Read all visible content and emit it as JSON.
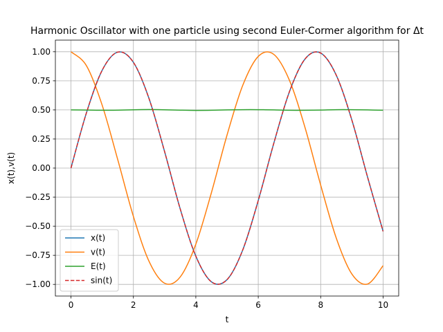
{
  "chart_data": {
    "type": "line",
    "title": "Harmonic Oscillator with one particle using second Euler-Cormer algorithm for Δt",
    "xlabel": "t",
    "ylabel": "x(t),v(t)",
    "xlim": [
      -0.5,
      10.5
    ],
    "ylim": [
      -1.1,
      1.1
    ],
    "xticks": [
      0,
      2,
      4,
      6,
      8,
      10
    ],
    "xtick_labels": [
      "0",
      "2",
      "4",
      "6",
      "8",
      "10"
    ],
    "yticks": [
      -1.0,
      -0.75,
      -0.5,
      -0.25,
      0.0,
      0.25,
      0.5,
      0.75,
      1.0
    ],
    "ytick_labels": [
      "−1.00",
      "−0.75",
      "−0.50",
      "−0.25",
      "0.00",
      "0.25",
      "0.50",
      "0.75",
      "1.00"
    ],
    "grid": true,
    "legend_position": "lower-left",
    "series": [
      {
        "name": "x(t)",
        "color": "#1f77b4",
        "style": "solid",
        "x": [
          0,
          0.5,
          1,
          1.5,
          2,
          2.5,
          3,
          3.5,
          4,
          4.5,
          5,
          5.5,
          6,
          6.5,
          7,
          7.5,
          8,
          8.5,
          9,
          9.5,
          10
        ],
        "y": [
          0,
          0.479,
          0.841,
          0.997,
          0.909,
          0.598,
          0.141,
          -0.351,
          -0.757,
          -0.978,
          -0.959,
          -0.706,
          -0.279,
          0.215,
          0.657,
          0.938,
          0.989,
          0.798,
          0.412,
          -0.075,
          -0.544
        ]
      },
      {
        "name": "v(t)",
        "color": "#ff7f0e",
        "style": "solid",
        "x": [
          0,
          0.5,
          1,
          1.5,
          2,
          2.5,
          3,
          3.5,
          4,
          4.5,
          5,
          5.5,
          6,
          6.5,
          7,
          7.5,
          8,
          8.5,
          9,
          9.5,
          10
        ],
        "y": [
          1.0,
          0.878,
          0.54,
          0.071,
          -0.416,
          -0.801,
          -0.99,
          -0.936,
          -0.654,
          -0.211,
          0.284,
          0.709,
          0.96,
          0.977,
          0.754,
          0.347,
          -0.146,
          -0.602,
          -0.911,
          -0.997,
          -0.839
        ]
      },
      {
        "name": "E(t)",
        "color": "#2ca02c",
        "style": "solid",
        "x": [
          0,
          0.5,
          1,
          1.5,
          2,
          2.5,
          3,
          3.5,
          4,
          4.5,
          5,
          5.5,
          6,
          6.5,
          7,
          7.5,
          8,
          8.5,
          9,
          9.5,
          10
        ],
        "y": [
          0.5,
          0.499,
          0.497,
          0.498,
          0.501,
          0.503,
          0.501,
          0.498,
          0.496,
          0.497,
          0.5,
          0.502,
          0.502,
          0.5,
          0.497,
          0.497,
          0.499,
          0.502,
          0.502,
          0.5,
          0.497
        ]
      },
      {
        "name": "sin(t)",
        "color": "#d62728",
        "style": "dashed",
        "x": [
          0,
          0.5,
          1,
          1.5,
          2,
          2.5,
          3,
          3.5,
          4,
          4.5,
          5,
          5.5,
          6,
          6.5,
          7,
          7.5,
          8,
          8.5,
          9,
          9.5,
          10
        ],
        "y": [
          0,
          0.479,
          0.841,
          0.997,
          0.909,
          0.598,
          0.141,
          -0.351,
          -0.757,
          -0.978,
          -0.959,
          -0.706,
          -0.279,
          0.215,
          0.657,
          0.938,
          0.989,
          0.798,
          0.412,
          -0.075,
          -0.544
        ]
      }
    ]
  }
}
